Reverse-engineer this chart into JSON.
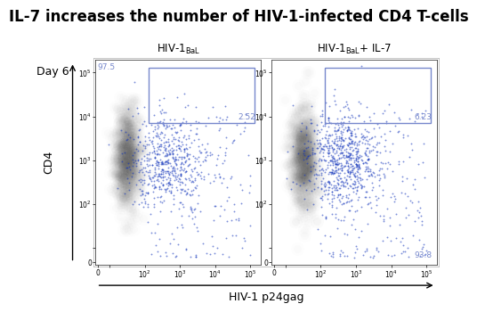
{
  "title": "IL-7 increases the number of HIV-1-infected CD4 T-cells",
  "title_fontsize": 12,
  "title_fontweight": "bold",
  "panel_bg": "#ffffff",
  "left_label_day": "Day 6",
  "left_label_cd4": "CD4",
  "xaxis_label": "HIV-1 p24gag",
  "plot1_val_topleft": "97.5",
  "plot1_val_box": "2.52",
  "plot2_val_box": "6.23",
  "plot2_val_bottomright": "93.8",
  "box_color": "#7788cc",
  "dot_color": "#1133bb",
  "seed1": 42,
  "seed2": 7,
  "n_blob1": 800,
  "n_blob2": 800,
  "n_dots1": 700,
  "n_dots2": 900
}
